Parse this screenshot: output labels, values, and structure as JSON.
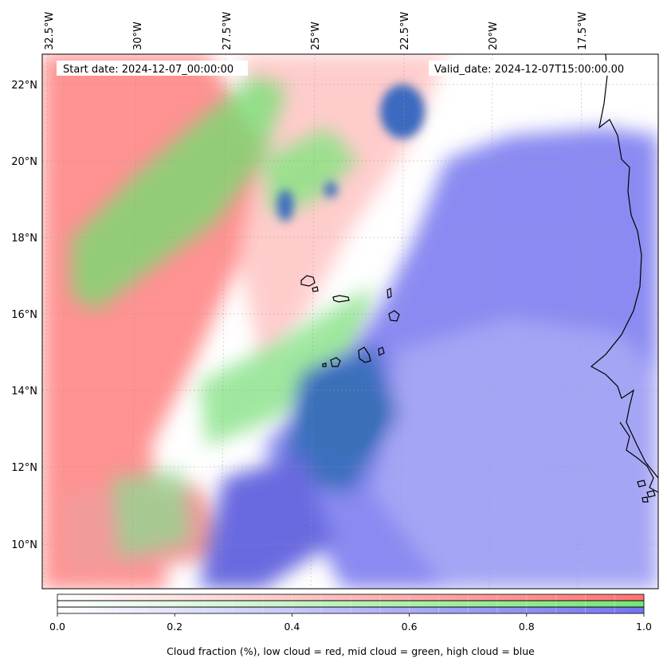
{
  "map": {
    "info": {
      "start_date": "Start date: 2024-12-07_00:00:00",
      "valid_date": "Valid_date: 2024-12-07T15:00:00.00"
    },
    "longitude_labels": [
      "32.5°W",
      "30°W",
      "27.5°W",
      "25°W",
      "22.5°W",
      "20°W",
      "17.5°W"
    ],
    "latitude_labels": [
      "22°N",
      "20°N",
      "18°N",
      "16°N",
      "14°N",
      "12°N",
      "10°N"
    ],
    "colors": {
      "low_cloud": "#ff7373",
      "mid_cloud": "#73e673",
      "high_cloud": "#7373f2",
      "coastline": "#000000"
    }
  },
  "colorbar": {
    "ticks": [
      "0.0",
      "0.2",
      "0.4",
      "0.6",
      "0.8",
      "1.0"
    ],
    "label": "Cloud fraction (%), low cloud = red, mid cloud = green, high cloud = blue"
  }
}
